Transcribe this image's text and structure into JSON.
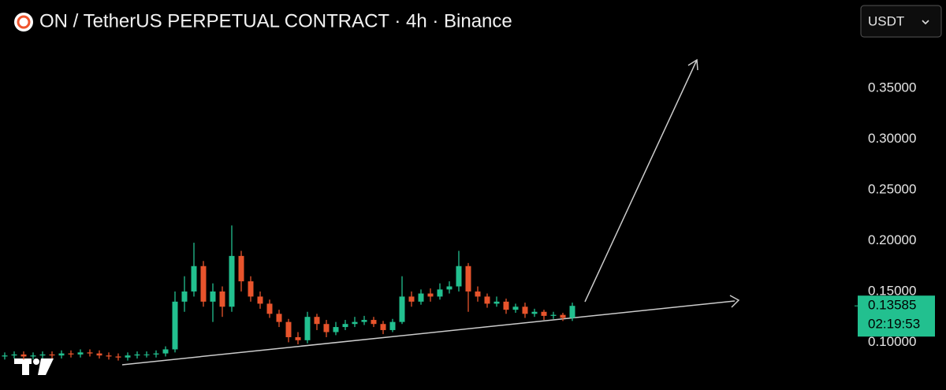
{
  "chart_data": {
    "type": "candlestick",
    "title": "ON / TetherUS PERPETUAL CONTRACT · 4h · Binance",
    "currency": "USDT",
    "up_color": "#22c08f",
    "down_color": "#e8542c",
    "ylim": [
      0.053,
      0.437
    ],
    "yticks": [
      {
        "value": 0.1,
        "label": "0.10000"
      },
      {
        "value": 0.15,
        "label": "0.15000"
      },
      {
        "value": 0.2,
        "label": "0.20000"
      },
      {
        "value": 0.25,
        "label": "0.25000"
      },
      {
        "value": 0.3,
        "label": "0.30000"
      },
      {
        "value": 0.35,
        "label": "0.35000"
      }
    ],
    "last_price": 0.13585,
    "countdown": "02:19:53",
    "open": [
      0.086,
      0.087,
      0.088,
      0.086,
      0.087,
      0.088,
      0.087,
      0.089,
      0.088,
      0.09,
      0.089,
      0.087,
      0.086,
      0.085,
      0.087,
      0.088,
      0.088,
      0.089,
      0.093,
      0.14,
      0.15,
      0.175,
      0.14,
      0.15,
      0.135,
      0.185,
      0.16,
      0.145,
      0.138,
      0.128,
      0.12,
      0.105,
      0.102,
      0.125,
      0.118,
      0.11,
      0.115,
      0.118,
      0.12,
      0.122,
      0.118,
      0.112,
      0.12,
      0.145,
      0.14,
      0.148,
      0.145,
      0.152,
      0.155,
      0.175,
      0.15,
      0.145,
      0.138,
      0.14,
      0.132,
      0.135,
      0.128,
      0.13,
      0.126,
      0.127,
      0.124
    ],
    "high": [
      0.09,
      0.091,
      0.091,
      0.09,
      0.091,
      0.091,
      0.092,
      0.092,
      0.093,
      0.093,
      0.092,
      0.09,
      0.089,
      0.09,
      0.091,
      0.091,
      0.092,
      0.096,
      0.15,
      0.165,
      0.198,
      0.18,
      0.158,
      0.155,
      0.215,
      0.19,
      0.165,
      0.15,
      0.142,
      0.132,
      0.123,
      0.11,
      0.13,
      0.128,
      0.122,
      0.12,
      0.122,
      0.125,
      0.126,
      0.125,
      0.121,
      0.123,
      0.165,
      0.15,
      0.152,
      0.153,
      0.158,
      0.16,
      0.19,
      0.178,
      0.155,
      0.148,
      0.145,
      0.143,
      0.138,
      0.139,
      0.133,
      0.132,
      0.13,
      0.129,
      0.139
    ],
    "low": [
      0.083,
      0.084,
      0.083,
      0.083,
      0.084,
      0.084,
      0.084,
      0.085,
      0.085,
      0.086,
      0.084,
      0.083,
      0.082,
      0.082,
      0.084,
      0.085,
      0.085,
      0.086,
      0.09,
      0.13,
      0.145,
      0.135,
      0.12,
      0.125,
      0.13,
      0.15,
      0.14,
      0.133,
      0.124,
      0.115,
      0.1,
      0.098,
      0.099,
      0.112,
      0.105,
      0.107,
      0.112,
      0.115,
      0.117,
      0.115,
      0.108,
      0.11,
      0.118,
      0.135,
      0.137,
      0.14,
      0.142,
      0.148,
      0.15,
      0.13,
      0.14,
      0.134,
      0.135,
      0.128,
      0.129,
      0.124,
      0.125,
      0.122,
      0.123,
      0.121,
      0.121
    ],
    "close": [
      0.087,
      0.088,
      0.086,
      0.087,
      0.088,
      0.087,
      0.089,
      0.088,
      0.09,
      0.089,
      0.087,
      0.086,
      0.085,
      0.087,
      0.088,
      0.088,
      0.089,
      0.093,
      0.14,
      0.15,
      0.175,
      0.14,
      0.15,
      0.135,
      0.185,
      0.16,
      0.145,
      0.138,
      0.128,
      0.12,
      0.105,
      0.102,
      0.125,
      0.118,
      0.11,
      0.115,
      0.118,
      0.12,
      0.122,
      0.118,
      0.112,
      0.12,
      0.145,
      0.14,
      0.148,
      0.145,
      0.152,
      0.155,
      0.175,
      0.15,
      0.145,
      0.138,
      0.14,
      0.132,
      0.135,
      0.128,
      0.13,
      0.126,
      0.127,
      0.124,
      0.13585
    ]
  }
}
